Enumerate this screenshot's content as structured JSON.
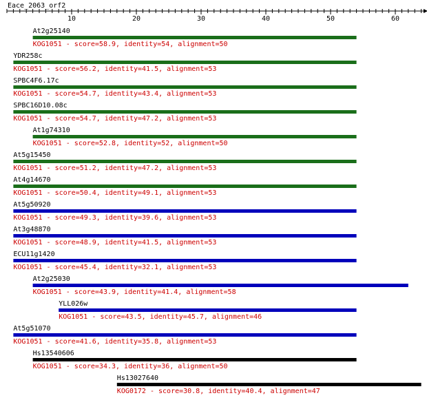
{
  "query": {
    "name": "Eace_2063_orf2",
    "axis_ticks": [
      10,
      20,
      30,
      40,
      50,
      60
    ],
    "length": 65
  },
  "colors": {
    "axis": "#000000",
    "label": "#000000",
    "annotation": "#cc0000",
    "green": "#1a6e1a",
    "blue": "#0000bb",
    "black": "#000000"
  },
  "hits": [
    {
      "name": "At2g25140",
      "start": 4,
      "end": 54,
      "color": "green",
      "annotation": "KOG1051 - score=58.9, identity=54, alignment=50"
    },
    {
      "name": "YDR258c",
      "start": 1,
      "end": 54,
      "color": "green",
      "annotation": "KOG1051 - score=56.2, identity=41.5, alignment=53"
    },
    {
      "name": "SPBC4F6.17c",
      "start": 1,
      "end": 54,
      "color": "green",
      "annotation": "KOG1051 - score=54.7, identity=43.4, alignment=53"
    },
    {
      "name": "SPBC16D10.08c",
      "start": 1,
      "end": 54,
      "color": "green",
      "annotation": "KOG1051 - score=54.7, identity=47.2, alignment=53"
    },
    {
      "name": "At1g74310",
      "start": 4,
      "end": 54,
      "color": "green",
      "annotation": "KOG1051 - score=52.8, identity=52, alignment=50"
    },
    {
      "name": "At5g15450",
      "start": 1,
      "end": 54,
      "color": "green",
      "annotation": "KOG1051 - score=51.2, identity=47.2, alignment=53"
    },
    {
      "name": "At4g14670",
      "start": 1,
      "end": 54,
      "color": "green",
      "annotation": "KOG1051 - score=50.4, identity=49.1, alignment=53"
    },
    {
      "name": "At5g50920",
      "start": 1,
      "end": 54,
      "color": "blue",
      "annotation": "KOG1051 - score=49.3, identity=39.6, alignment=53"
    },
    {
      "name": "At3g48870",
      "start": 1,
      "end": 54,
      "color": "blue",
      "annotation": "KOG1051 - score=48.9, identity=41.5, alignment=53"
    },
    {
      "name": "ECU11g1420",
      "start": 1,
      "end": 54,
      "color": "blue",
      "annotation": "KOG1051 - score=45.4, identity=32.1, alignment=53"
    },
    {
      "name": "At2g25030",
      "start": 4,
      "end": 62,
      "color": "blue",
      "annotation": "KOG1051 - score=43.9, identity=41.4, alignment=58"
    },
    {
      "name": "YLL026w",
      "start": 8,
      "end": 54,
      "color": "blue",
      "annotation": "KOG1051 - score=43.5, identity=45.7, alignment=46"
    },
    {
      "name": "At5g51070",
      "start": 1,
      "end": 54,
      "color": "blue",
      "annotation": "KOG1051 - score=41.6, identity=35.8, alignment=53"
    },
    {
      "name": "Hs13540606",
      "start": 4,
      "end": 54,
      "color": "black",
      "annotation": "KOG1051 - score=34.3, identity=36, alignment=50"
    },
    {
      "name": "Hs13027640",
      "start": 17,
      "end": 64,
      "color": "black",
      "annotation": "KOG0172 - score=30.8, identity=40.4, alignment=47"
    }
  ]
}
